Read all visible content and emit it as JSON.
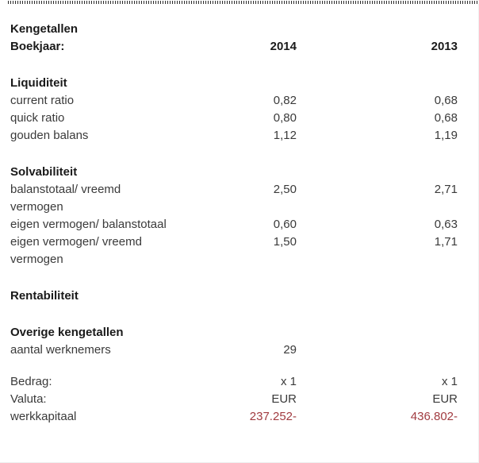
{
  "header": {
    "title": "Kengetallen",
    "year_row_label": "Boekjaar:",
    "columns": {
      "col1": "2014",
      "col2": "2013"
    }
  },
  "sections": [
    {
      "heading": "Liquiditeit",
      "rows": [
        {
          "label": "current ratio",
          "v2014": "0,82",
          "v2013": "0,68"
        },
        {
          "label": "quick ratio",
          "v2014": "0,80",
          "v2013": "0,68"
        },
        {
          "label": "gouden balans",
          "v2014": "1,12",
          "v2013": "1,19"
        }
      ]
    },
    {
      "heading": "Solvabiliteit",
      "rows": [
        {
          "label": "balanstotaal/ vreemd vermogen",
          "v2014": "2,50",
          "v2013": "2,71"
        },
        {
          "label": "eigen vermogen/ balanstotaal",
          "v2014": "0,60",
          "v2013": "0,63"
        },
        {
          "label": "eigen vermogen/ vreemd vermogen",
          "v2014": "1,50",
          "v2013": "1,71"
        }
      ]
    },
    {
      "heading": "Rentabiliteit",
      "rows": []
    },
    {
      "heading": "Overige kengetallen",
      "rows": [
        {
          "label": "aantal werknemers",
          "v2014": "29",
          "v2013": ""
        }
      ]
    }
  ],
  "footer": {
    "rows": [
      {
        "label": "Bedrag:",
        "v2014": "x 1",
        "v2013": "x 1",
        "negative": false
      },
      {
        "label": "Valuta:",
        "v2014": "EUR",
        "v2013": "EUR",
        "negative": false
      },
      {
        "label": "werkkapitaal",
        "v2014": "237.252-",
        "v2013": "436.802-",
        "negative": true
      }
    ]
  },
  "colors": {
    "negative_value": "#a13b40",
    "heading_text": "#1a1a1a",
    "body_text": "#3a3a3a"
  }
}
